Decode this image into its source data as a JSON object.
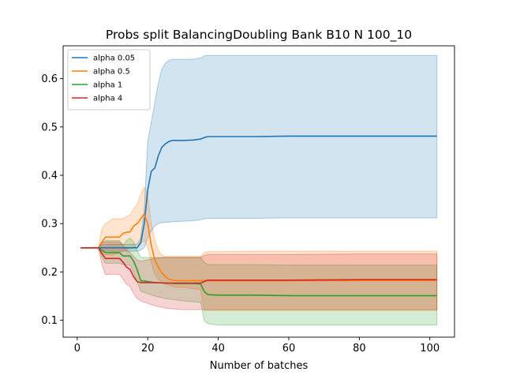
{
  "chart_data": {
    "type": "line",
    "title": "Probs split BalancingDoubling Bank B10 N 100_10",
    "xlabel": "Number of batches",
    "ylabel": "",
    "xlim": [
      -4,
      107
    ],
    "ylim": [
      0.065,
      0.668
    ],
    "xticks": [
      0,
      20,
      40,
      60,
      80,
      100
    ],
    "yticks": [
      0.1,
      0.2,
      0.3,
      0.4,
      0.5,
      0.6
    ],
    "grid": false,
    "legend_position": "top-left",
    "series": [
      {
        "name": "alpha 0.05",
        "color": "#1f77b4",
        "x": [
          1,
          6,
          7,
          10,
          13,
          14,
          15,
          16,
          17,
          18,
          19,
          20,
          21,
          22,
          23,
          24,
          25,
          26,
          27,
          30,
          33,
          35,
          36,
          37,
          40,
          50,
          60,
          80,
          102
        ],
        "y": [
          0.25,
          0.25,
          0.25,
          0.25,
          0.25,
          0.25,
          0.25,
          0.25,
          0.25,
          0.26,
          0.3,
          0.37,
          0.408,
          0.415,
          0.44,
          0.458,
          0.465,
          0.47,
          0.472,
          0.472,
          0.473,
          0.475,
          0.478,
          0.48,
          0.48,
          0.48,
          0.481,
          0.481,
          0.481
        ],
        "lower": [
          0.25,
          0.25,
          0.245,
          0.243,
          0.243,
          0.243,
          0.243,
          0.243,
          0.243,
          0.245,
          0.25,
          0.27,
          0.285,
          0.295,
          0.3,
          0.302,
          0.303,
          0.303,
          0.304,
          0.305,
          0.306,
          0.308,
          0.31,
          0.311,
          0.311,
          0.311,
          0.312,
          0.312,
          0.312
        ],
        "upper": [
          0.25,
          0.25,
          0.257,
          0.257,
          0.257,
          0.257,
          0.257,
          0.257,
          0.258,
          0.27,
          0.33,
          0.47,
          0.51,
          0.55,
          0.59,
          0.62,
          0.632,
          0.638,
          0.64,
          0.64,
          0.64,
          0.643,
          0.647,
          0.648,
          0.648,
          0.648,
          0.648,
          0.648,
          0.648
        ]
      },
      {
        "name": "alpha 0.5",
        "color": "#ff7f0e",
        "x": [
          1,
          6,
          7,
          8,
          10,
          12,
          13,
          14,
          15,
          16,
          17,
          18,
          19,
          20,
          21,
          22,
          23,
          24,
          25,
          26,
          27,
          28,
          30,
          33,
          35,
          36,
          37,
          40,
          50,
          60,
          80,
          102
        ],
        "y": [
          0.25,
          0.25,
          0.262,
          0.272,
          0.272,
          0.272,
          0.28,
          0.282,
          0.283,
          0.295,
          0.3,
          0.31,
          0.32,
          0.3,
          0.255,
          0.225,
          0.21,
          0.198,
          0.19,
          0.185,
          0.183,
          0.182,
          0.182,
          0.182,
          0.182,
          0.182,
          0.182,
          0.182,
          0.182,
          0.182,
          0.182,
          0.182
        ],
        "lower": [
          0.25,
          0.25,
          0.24,
          0.235,
          0.235,
          0.24,
          0.245,
          0.245,
          0.25,
          0.252,
          0.255,
          0.26,
          0.265,
          0.25,
          0.22,
          0.195,
          0.185,
          0.178,
          0.175,
          0.173,
          0.17,
          0.168,
          0.168,
          0.165,
          0.163,
          0.12,
          0.12,
          0.12,
          0.12,
          0.12,
          0.12,
          0.12
        ],
        "upper": [
          0.25,
          0.25,
          0.29,
          0.3,
          0.31,
          0.31,
          0.31,
          0.315,
          0.318,
          0.33,
          0.34,
          0.36,
          0.375,
          0.36,
          0.3,
          0.265,
          0.245,
          0.235,
          0.232,
          0.232,
          0.232,
          0.232,
          0.232,
          0.232,
          0.232,
          0.24,
          0.242,
          0.242,
          0.243,
          0.243,
          0.243,
          0.243
        ]
      },
      {
        "name": "alpha 1",
        "color": "#2ca02c",
        "x": [
          1,
          6,
          7,
          8,
          10,
          12,
          13,
          14,
          15,
          16,
          17,
          18,
          20,
          22,
          25,
          28,
          30,
          33,
          35,
          36,
          37,
          40,
          50,
          60,
          80,
          102
        ],
        "y": [
          0.25,
          0.25,
          0.245,
          0.24,
          0.24,
          0.24,
          0.233,
          0.233,
          0.233,
          0.222,
          0.205,
          0.182,
          0.18,
          0.178,
          0.177,
          0.176,
          0.176,
          0.176,
          0.175,
          0.16,
          0.153,
          0.152,
          0.152,
          0.151,
          0.151,
          0.151
        ],
        "lower": [
          0.25,
          0.25,
          0.23,
          0.218,
          0.218,
          0.218,
          0.215,
          0.215,
          0.213,
          0.2,
          0.18,
          0.16,
          0.155,
          0.15,
          0.145,
          0.142,
          0.14,
          0.138,
          0.137,
          0.1,
          0.093,
          0.09,
          0.09,
          0.09,
          0.09,
          0.09
        ],
        "upper": [
          0.25,
          0.25,
          0.26,
          0.265,
          0.265,
          0.265,
          0.255,
          0.265,
          0.27,
          0.262,
          0.245,
          0.23,
          0.23,
          0.23,
          0.23,
          0.23,
          0.23,
          0.23,
          0.23,
          0.22,
          0.215,
          0.215,
          0.215,
          0.214,
          0.214,
          0.214
        ]
      },
      {
        "name": "alpha 4",
        "color": "#d62728",
        "x": [
          1,
          6,
          7,
          8,
          10,
          12,
          13,
          14,
          15,
          16,
          17,
          18,
          20,
          22,
          25,
          28,
          30,
          33,
          35,
          36,
          37,
          40,
          50,
          60,
          80,
          102
        ],
        "y": [
          0.25,
          0.25,
          0.238,
          0.228,
          0.228,
          0.228,
          0.22,
          0.21,
          0.205,
          0.19,
          0.18,
          0.178,
          0.178,
          0.178,
          0.177,
          0.177,
          0.177,
          0.177,
          0.177,
          0.18,
          0.183,
          0.183,
          0.183,
          0.183,
          0.184,
          0.184
        ],
        "lower": [
          0.25,
          0.25,
          0.215,
          0.195,
          0.195,
          0.195,
          0.185,
          0.175,
          0.17,
          0.155,
          0.145,
          0.14,
          0.135,
          0.13,
          0.125,
          0.123,
          0.122,
          0.122,
          0.122,
          0.122,
          0.122,
          0.122,
          0.122,
          0.122,
          0.122,
          0.122
        ],
        "upper": [
          0.25,
          0.25,
          0.262,
          0.262,
          0.262,
          0.262,
          0.255,
          0.245,
          0.24,
          0.232,
          0.225,
          0.222,
          0.225,
          0.228,
          0.23,
          0.23,
          0.23,
          0.23,
          0.23,
          0.234,
          0.236,
          0.236,
          0.236,
          0.236,
          0.237,
          0.237
        ]
      }
    ]
  }
}
